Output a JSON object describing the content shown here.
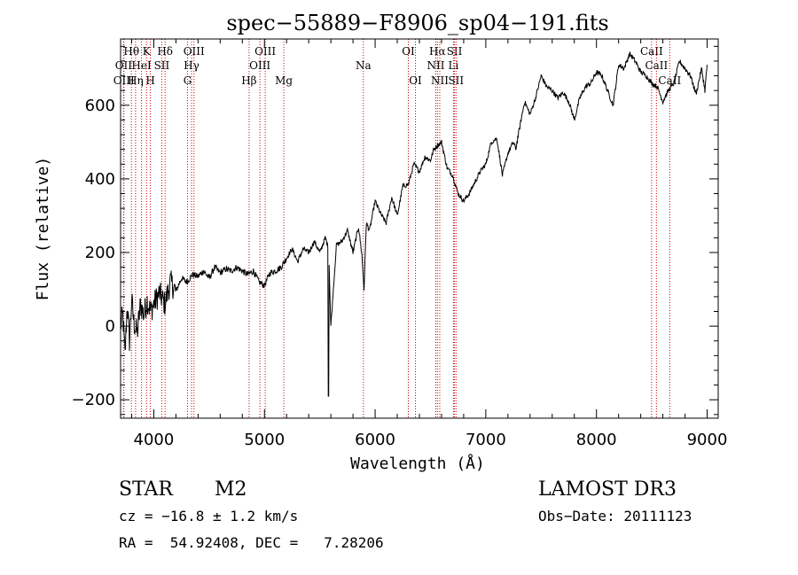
{
  "chart_data": {
    "type": "line",
    "title": "spec−55889−F8906_sp04−191.fits",
    "xlabel": "Wavelength (Å)",
    "ylabel": "Flux (relative)",
    "xlim": [
      3700,
      9100
    ],
    "ylim": [
      -250,
      780
    ],
    "x_ticks": [
      4000,
      5000,
      6000,
      7000,
      8000,
      9000
    ],
    "y_ticks": [
      -200,
      0,
      200,
      400,
      600
    ],
    "x_tick_labels": [
      "4000",
      "5000",
      "6000",
      "7000",
      "8000",
      "9000"
    ],
    "y_tick_labels": [
      "−200",
      "0",
      "200",
      "400",
      "600"
    ],
    "line_color": "#000000",
    "marker_color": "#cc0000",
    "series": [
      {
        "name": "spectrum",
        "x": [
          3700,
          3720,
          3740,
          3760,
          3780,
          3800,
          3820,
          3850,
          3880,
          3910,
          3940,
          3970,
          4000,
          4050,
          4100,
          4150,
          4200,
          4250,
          4300,
          4350,
          4400,
          4450,
          4500,
          4550,
          4600,
          4650,
          4700,
          4750,
          4800,
          4850,
          4900,
          4950,
          5000,
          5050,
          5100,
          5150,
          5200,
          5250,
          5300,
          5350,
          5400,
          5450,
          5500,
          5550,
          5580,
          5600,
          5650,
          5700,
          5750,
          5800,
          5850,
          5880,
          5900,
          5920,
          5950,
          6000,
          6050,
          6100,
          6150,
          6200,
          6250,
          6300,
          6350,
          6400,
          6450,
          6500,
          6530,
          6560,
          6600,
          6650,
          6700,
          6750,
          6800,
          6850,
          6900,
          6950,
          7000,
          7050,
          7100,
          7150,
          7200,
          7250,
          7270,
          7300,
          7350,
          7400,
          7450,
          7500,
          7550,
          7600,
          7650,
          7700,
          7750,
          7800,
          7850,
          7900,
          7950,
          8000,
          8050,
          8100,
          8150,
          8200,
          8250,
          8300,
          8350,
          8400,
          8450,
          8500,
          8550,
          8600,
          8650,
          8700,
          8750,
          8800,
          8850,
          8900,
          8950,
          8980,
          9000
        ],
        "y": [
          0,
          30,
          -80,
          60,
          -40,
          70,
          10,
          -20,
          60,
          30,
          70,
          40,
          60,
          90,
          60,
          120,
          95,
          130,
          120,
          140,
          135,
          150,
          130,
          160,
          145,
          155,
          150,
          160,
          150,
          140,
          150,
          120,
          110,
          145,
          150,
          160,
          185,
          210,
          175,
          210,
          200,
          230,
          200,
          240,
          210,
          0,
          220,
          230,
          260,
          200,
          270,
          195,
          100,
          280,
          260,
          340,
          305,
          280,
          350,
          300,
          380,
          385,
          440,
          420,
          460,
          450,
          480,
          490,
          500,
          430,
          410,
          360,
          340,
          360,
          390,
          420,
          440,
          500,
          510,
          410,
          470,
          500,
          480,
          530,
          610,
          575,
          620,
          680,
          650,
          640,
          620,
          635,
          610,
          560,
          620,
          650,
          660,
          690,
          680,
          640,
          600,
          710,
          700,
          740,
          720,
          690,
          680,
          660,
          650,
          610,
          640,
          660,
          720,
          700,
          680,
          630,
          700,
          640,
          710
        ]
      }
    ],
    "line_markers": [
      {
        "name": "Hθ",
        "x": 3798,
        "row": 1
      },
      {
        "name": "OII",
        "x": 3727,
        "row": 2
      },
      {
        "name": "OIII",
        "x": 3730,
        "row": 3
      },
      {
        "name": "HeI",
        "x": 3889,
        "row": 2
      },
      {
        "name": "Hη",
        "x": 3835,
        "row": 3
      },
      {
        "name": "K",
        "x": 3934,
        "row": 1
      },
      {
        "name": "H",
        "x": 3969,
        "row": 3
      },
      {
        "name": "SII",
        "x": 4072,
        "row": 2
      },
      {
        "name": "Hδ",
        "x": 4102,
        "row": 1
      },
      {
        "name": "OIII",
        "x": 4363,
        "row": 1
      },
      {
        "name": "Hγ",
        "x": 4341,
        "row": 2
      },
      {
        "name": "G",
        "x": 4305,
        "row": 3
      },
      {
        "name": "Hβ",
        "x": 4861,
        "row": 3
      },
      {
        "name": "OIII",
        "x": 5007,
        "row": 1
      },
      {
        "name": "OIII",
        "x": 4959,
        "row": 2
      },
      {
        "name": "Mg",
        "x": 5175,
        "row": 3
      },
      {
        "name": "Na",
        "x": 5894,
        "row": 2
      },
      {
        "name": "OI",
        "x": 6300,
        "row": 1
      },
      {
        "name": "OI",
        "x": 6364,
        "row": 3
      },
      {
        "name": "Hα",
        "x": 6563,
        "row": 1
      },
      {
        "name": "NII",
        "x": 6548,
        "row": 2
      },
      {
        "name": "NII",
        "x": 6584,
        "row": 3
      },
      {
        "name": "SII",
        "x": 6717,
        "row": 1
      },
      {
        "name": "Li",
        "x": 6708,
        "row": 2
      },
      {
        "name": "SII",
        "x": 6731,
        "row": 3
      },
      {
        "name": "CaII",
        "x": 8498,
        "row": 1
      },
      {
        "name": "CaII",
        "x": 8542,
        "row": 2
      },
      {
        "name": "CaII",
        "x": 8662,
        "row": 3
      }
    ]
  },
  "info": {
    "object_class": "STAR",
    "subclass": "M2",
    "survey": "LAMOST DR3",
    "redshift": "cz = −16.8 ± 1.2 km/s",
    "obs_date": "Obs−Date: 20111123",
    "coords": "RA =  54.92408, DEC =   7.28206"
  }
}
